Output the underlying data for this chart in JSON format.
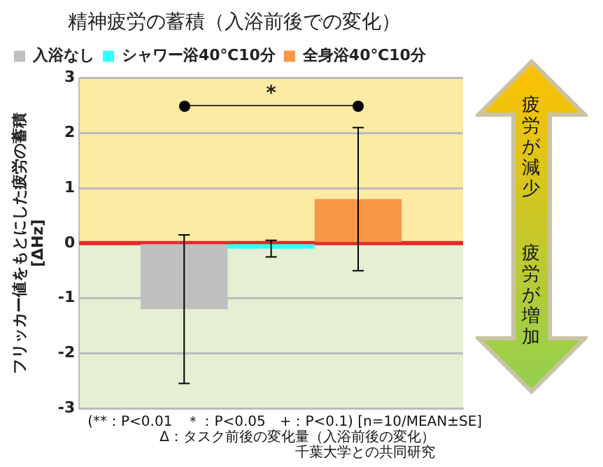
{
  "chart_data": {
    "type": "bar",
    "title": "精神疲労の蓄積（入浴前後での変化）",
    "ylabel": "フリッカー値をもとにした疲労の蓄積\n[ΔHz]",
    "categories": [
      null
    ],
    "series": [
      {
        "name": "入浴なし",
        "color": "#bfbfbf",
        "values": [
          -1.2
        ],
        "errors": [
          1.35
        ]
      },
      {
        "name": "シャワー浴40℃10分",
        "color": "#33ffff",
        "values": [
          -0.1
        ],
        "errors": [
          0.15
        ]
      },
      {
        "name": "全身浴40℃10分",
        "color": "#f79646",
        "values": [
          0.8
        ],
        "errors": [
          1.3
        ]
      }
    ],
    "ylim": [
      -3,
      3
    ],
    "yticks": [
      -3,
      -2,
      -1,
      0,
      1,
      2,
      3
    ],
    "grid": "y",
    "legend": "top",
    "bands": [
      {
        "axis": "y",
        "from": 0,
        "to": 3,
        "color": "#fdeaa3"
      },
      {
        "axis": "y",
        "from": -3,
        "to": 0,
        "color": "#e5efd3"
      }
    ],
    "ref_lines": [
      {
        "axis": "y",
        "value": 0,
        "color": "#e8262a"
      }
    ],
    "annotations": [
      "*",
      "疲労が減少",
      "疲労が増加",
      "(**：P<0.01　＊：P<0.05　+：P<0.1) [n=10/MEAN±SE]",
      "Δ：タスク前後の変化量（入浴前後の変化）",
      "千葉大学との共同研究"
    ]
  }
}
